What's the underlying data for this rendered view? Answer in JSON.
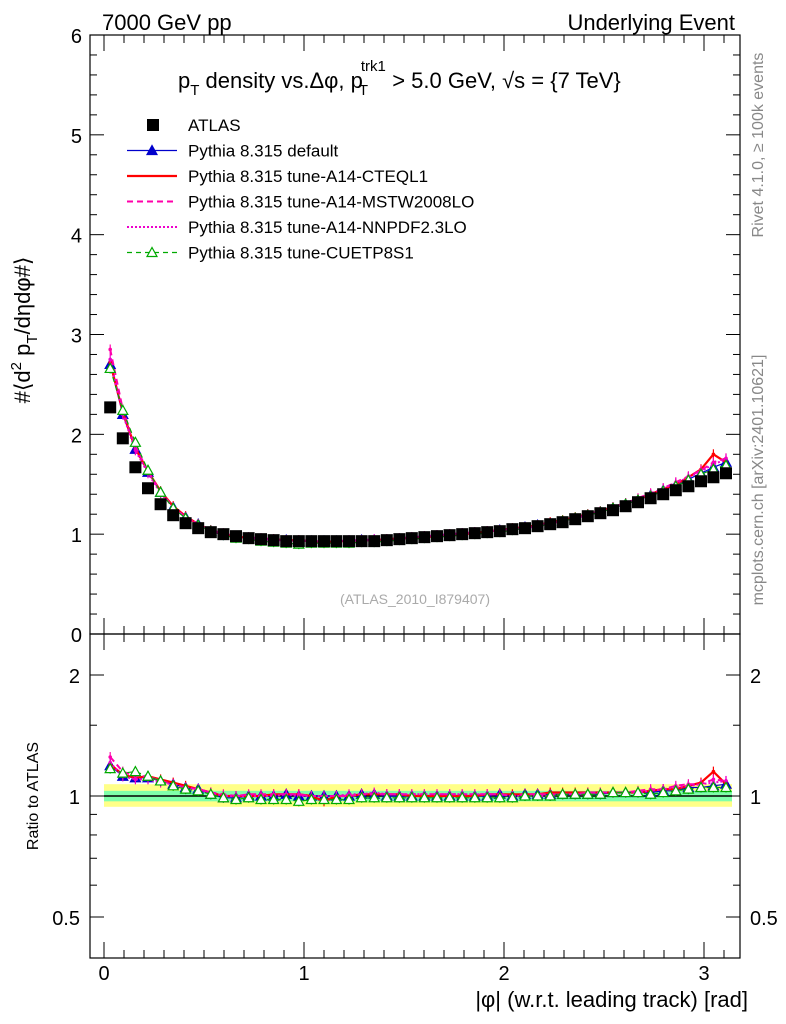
{
  "header": {
    "left_label": "7000 GeV pp",
    "right_label": "Underlying Event"
  },
  "side_labels": {
    "rivet": "Rivet 4.1.0, ≥ 100k events",
    "mcplots": "mcplots.cern.ch [arXiv:2401.10621]"
  },
  "watermark": "(ATLAS_2010_I879407)",
  "colors": {
    "atlas": "#000000",
    "default": "#0000cc",
    "cteql1": "#ff0000",
    "mstw": "#ff00aa",
    "nnpdf": "#ee00cc",
    "cuetp8s1": "#00aa00",
    "band_inner": "#7fffaa",
    "band_outer": "#ffff88"
  },
  "chart_data": [
    {
      "type": "scatter",
      "panel": "main",
      "title": "p_T density vs.Δφ, p_T^trk1 > 5.0 GeV, √s = {7 TeV}",
      "title_parts": {
        "p": "p",
        "sub_t": "T",
        "mid": " density vs.Δφ, p",
        "sup_trk": "trk1",
        "rest": " > 5.0 GeV, √s = {7 TeV}"
      },
      "ylabel_parts": {
        "a": "#⟨d",
        "sup2": "2",
        "b": " p",
        "subT": "T",
        "c": "/dηdφ#⟩"
      },
      "xlim": [
        -0.1,
        3.2
      ],
      "ylim": [
        0,
        6
      ],
      "yticks": [
        "0",
        "1",
        "2",
        "3",
        "4",
        "5",
        "6"
      ],
      "grid": false,
      "legend_position": "top-left",
      "legend": [
        {
          "label": "ATLAS",
          "key": "atlas",
          "style": "marker-square"
        },
        {
          "label": "Pythia 8.315 default",
          "key": "default",
          "style": "solid-triangle"
        },
        {
          "label": "Pythia 8.315 tune-A14-CTEQL1",
          "key": "cteql1",
          "style": "solid"
        },
        {
          "label": "Pythia 8.315 tune-A14-MSTW2008LO",
          "key": "mstw",
          "style": "dashed"
        },
        {
          "label": "Pythia 8.315 tune-A14-NNPDF2.3LO",
          "key": "nnpdf",
          "style": "dotted"
        },
        {
          "label": "Pythia 8.315 tune-CUETP8S1",
          "key": "cuetp8s1",
          "style": "dashed-open-triangle"
        }
      ],
      "x": [
        0.031,
        0.094,
        0.157,
        0.22,
        0.283,
        0.346,
        0.408,
        0.471,
        0.534,
        0.597,
        0.66,
        0.723,
        0.785,
        0.848,
        0.911,
        0.974,
        1.037,
        1.1,
        1.162,
        1.225,
        1.288,
        1.351,
        1.414,
        1.477,
        1.539,
        1.602,
        1.665,
        1.728,
        1.791,
        1.854,
        1.916,
        1.979,
        2.042,
        2.105,
        2.168,
        2.231,
        2.293,
        2.356,
        2.419,
        2.482,
        2.545,
        2.608,
        2.67,
        2.733,
        2.796,
        2.859,
        2.922,
        2.985,
        3.047,
        3.11
      ],
      "series": [
        {
          "name": "ATLAS",
          "key": "atlas",
          "values": [
            2.27,
            1.96,
            1.67,
            1.46,
            1.3,
            1.19,
            1.11,
            1.06,
            1.02,
            1.0,
            0.98,
            0.96,
            0.95,
            0.94,
            0.93,
            0.93,
            0.93,
            0.93,
            0.93,
            0.93,
            0.93,
            0.93,
            0.94,
            0.95,
            0.96,
            0.97,
            0.98,
            0.99,
            1.0,
            1.01,
            1.02,
            1.03,
            1.05,
            1.06,
            1.08,
            1.1,
            1.12,
            1.15,
            1.18,
            1.21,
            1.24,
            1.28,
            1.32,
            1.36,
            1.4,
            1.44,
            1.48,
            1.53,
            1.57,
            1.61
          ]
        },
        {
          "name": "Pythia 8.315 default",
          "key": "default",
          "values": [
            2.7,
            2.2,
            1.85,
            1.62,
            1.42,
            1.27,
            1.17,
            1.1,
            1.03,
            0.99,
            0.97,
            0.96,
            0.95,
            0.94,
            0.94,
            0.93,
            0.93,
            0.93,
            0.93,
            0.93,
            0.94,
            0.94,
            0.94,
            0.95,
            0.96,
            0.97,
            0.98,
            0.99,
            1.0,
            1.01,
            1.02,
            1.04,
            1.05,
            1.07,
            1.09,
            1.11,
            1.13,
            1.16,
            1.19,
            1.22,
            1.26,
            1.3,
            1.34,
            1.39,
            1.44,
            1.49,
            1.55,
            1.61,
            1.67,
            1.72
          ]
        },
        {
          "name": "Pythia 8.315 tune-A14-CTEQL1",
          "key": "cteql1",
          "values": [
            2.72,
            2.22,
            1.86,
            1.63,
            1.43,
            1.28,
            1.18,
            1.1,
            1.04,
            1.0,
            0.98,
            0.96,
            0.95,
            0.95,
            0.94,
            0.94,
            0.93,
            0.92,
            0.93,
            0.93,
            0.94,
            0.94,
            0.95,
            0.96,
            0.96,
            0.97,
            0.98,
            0.99,
            1.0,
            1.01,
            1.03,
            1.04,
            1.06,
            1.07,
            1.09,
            1.12,
            1.14,
            1.17,
            1.2,
            1.23,
            1.27,
            1.31,
            1.35,
            1.4,
            1.45,
            1.5,
            1.57,
            1.65,
            1.8,
            1.72
          ]
        },
        {
          "name": "Pythia 8.315 tune-A14-MSTW2008LO",
          "key": "mstw",
          "values": [
            2.85,
            2.25,
            1.88,
            1.63,
            1.42,
            1.27,
            1.17,
            1.1,
            1.04,
            1.01,
            0.98,
            0.97,
            0.96,
            0.95,
            0.94,
            0.94,
            0.93,
            0.93,
            0.93,
            0.93,
            0.94,
            0.94,
            0.95,
            0.96,
            0.97,
            0.98,
            0.99,
            1.0,
            1.01,
            1.02,
            1.03,
            1.04,
            1.05,
            1.07,
            1.09,
            1.11,
            1.13,
            1.16,
            1.2,
            1.23,
            1.27,
            1.31,
            1.36,
            1.41,
            1.46,
            1.52,
            1.58,
            1.64,
            1.72,
            1.76
          ]
        },
        {
          "name": "Pythia 8.315 tune-A14-NNPDF2.3LO",
          "key": "nnpdf",
          "values": [
            2.75,
            2.2,
            1.84,
            1.61,
            1.41,
            1.27,
            1.17,
            1.1,
            1.04,
            1.0,
            0.98,
            0.96,
            0.95,
            0.94,
            0.94,
            0.93,
            0.93,
            0.93,
            0.93,
            0.94,
            0.94,
            0.95,
            0.95,
            0.96,
            0.97,
            0.98,
            0.99,
            1.0,
            1.01,
            1.02,
            1.03,
            1.04,
            1.05,
            1.06,
            1.08,
            1.1,
            1.13,
            1.16,
            1.19,
            1.23,
            1.27,
            1.31,
            1.35,
            1.4,
            1.46,
            1.51,
            1.57,
            1.63,
            1.7,
            1.75
          ]
        },
        {
          "name": "Pythia 8.315 tune-CUETP8S1",
          "key": "cuetp8s1",
          "values": [
            2.66,
            2.24,
            1.92,
            1.64,
            1.42,
            1.26,
            1.16,
            1.09,
            1.03,
            0.99,
            0.96,
            0.95,
            0.93,
            0.92,
            0.91,
            0.9,
            0.91,
            0.91,
            0.91,
            0.91,
            0.92,
            0.92,
            0.93,
            0.94,
            0.95,
            0.96,
            0.97,
            0.98,
            0.99,
            1.0,
            1.01,
            1.02,
            1.04,
            1.06,
            1.08,
            1.1,
            1.13,
            1.16,
            1.19,
            1.22,
            1.26,
            1.3,
            1.34,
            1.38,
            1.43,
            1.48,
            1.54,
            1.6,
            1.65,
            1.69
          ]
        }
      ]
    },
    {
      "type": "line",
      "panel": "ratio",
      "ylabel": "Ratio to ATLAS",
      "xlabel": "|φ| (w.r.t. leading track) [rad]",
      "ylim": [
        0.4,
        2.4
      ],
      "yscale": "log",
      "yticks": [
        "0.5",
        "1",
        "2"
      ],
      "xticks": [
        "0",
        "1",
        "2",
        "3"
      ],
      "band_inner": [
        0.97,
        1.03
      ],
      "band_outer": [
        0.94,
        1.07
      ],
      "reference_line": 1,
      "series": [
        {
          "name": "Pythia 8.315 default",
          "key": "default",
          "values": [
            1.19,
            1.12,
            1.11,
            1.11,
            1.09,
            1.07,
            1.05,
            1.04,
            1.01,
            0.99,
            0.99,
            1.0,
            1.0,
            1.0,
            1.01,
            1.0,
            1.0,
            1.0,
            1.0,
            1.0,
            1.01,
            1.01,
            1.0,
            1.0,
            1.0,
            1.0,
            1.0,
            1.0,
            1.0,
            1.0,
            1.0,
            1.01,
            1.0,
            1.01,
            1.01,
            1.01,
            1.01,
            1.01,
            1.01,
            1.01,
            1.02,
            1.02,
            1.02,
            1.02,
            1.03,
            1.03,
            1.05,
            1.05,
            1.06,
            1.07
          ]
        },
        {
          "name": "Pythia 8.315 tune-A14-CTEQL1",
          "key": "cteql1",
          "values": [
            1.2,
            1.13,
            1.11,
            1.12,
            1.1,
            1.08,
            1.06,
            1.04,
            1.02,
            1.0,
            1.0,
            1.0,
            1.0,
            1.01,
            1.01,
            1.01,
            1.0,
            0.97,
            1.0,
            1.0,
            1.01,
            1.01,
            1.01,
            1.01,
            1.0,
            1.0,
            1.0,
            1.0,
            1.0,
            1.0,
            1.01,
            1.01,
            1.01,
            1.01,
            1.01,
            1.02,
            1.02,
            1.02,
            1.02,
            1.02,
            1.02,
            1.02,
            1.02,
            1.03,
            1.04,
            1.04,
            1.06,
            1.08,
            1.15,
            1.07
          ]
        },
        {
          "name": "Pythia 8.315 tune-A14-MSTW2008LO",
          "key": "mstw",
          "values": [
            1.25,
            1.15,
            1.12,
            1.12,
            1.09,
            1.07,
            1.05,
            1.04,
            1.02,
            1.01,
            1.0,
            1.01,
            1.01,
            1.01,
            1.01,
            1.01,
            1.0,
            1.0,
            1.0,
            1.0,
            1.01,
            1.01,
            1.01,
            1.01,
            1.01,
            1.01,
            1.01,
            1.01,
            1.01,
            1.01,
            1.01,
            1.01,
            1.0,
            1.01,
            1.01,
            1.01,
            1.01,
            1.01,
            1.02,
            1.02,
            1.02,
            1.02,
            1.03,
            1.04,
            1.04,
            1.06,
            1.07,
            1.07,
            1.1,
            1.09
          ]
        },
        {
          "name": "Pythia 8.315 tune-A14-NNPDF2.3LO",
          "key": "nnpdf",
          "values": [
            1.21,
            1.12,
            1.1,
            1.1,
            1.08,
            1.07,
            1.05,
            1.04,
            1.02,
            1.0,
            1.0,
            1.0,
            1.0,
            1.0,
            1.01,
            1.0,
            1.0,
            1.0,
            1.0,
            1.01,
            1.01,
            1.02,
            1.01,
            1.01,
            1.01,
            1.01,
            1.01,
            1.01,
            1.01,
            1.01,
            1.01,
            1.01,
            1.0,
            1.0,
            1.0,
            1.0,
            1.01,
            1.01,
            1.01,
            1.02,
            1.02,
            1.02,
            1.02,
            1.03,
            1.04,
            1.05,
            1.06,
            1.07,
            1.08,
            1.09
          ]
        },
        {
          "name": "Pythia 8.315 tune-CUETP8S1",
          "key": "cuetp8s1",
          "values": [
            1.17,
            1.14,
            1.15,
            1.12,
            1.09,
            1.06,
            1.04,
            1.03,
            1.01,
            0.99,
            0.98,
            0.99,
            0.98,
            0.98,
            0.98,
            0.97,
            0.98,
            0.98,
            0.98,
            0.98,
            0.99,
            0.99,
            0.99,
            0.99,
            0.99,
            0.99,
            0.99,
            0.99,
            0.99,
            0.99,
            0.99,
            0.99,
            0.99,
            1.0,
            1.0,
            1.0,
            1.01,
            1.01,
            1.01,
            1.01,
            1.02,
            1.02,
            1.02,
            1.01,
            1.02,
            1.03,
            1.04,
            1.05,
            1.05,
            1.05
          ]
        }
      ]
    }
  ]
}
